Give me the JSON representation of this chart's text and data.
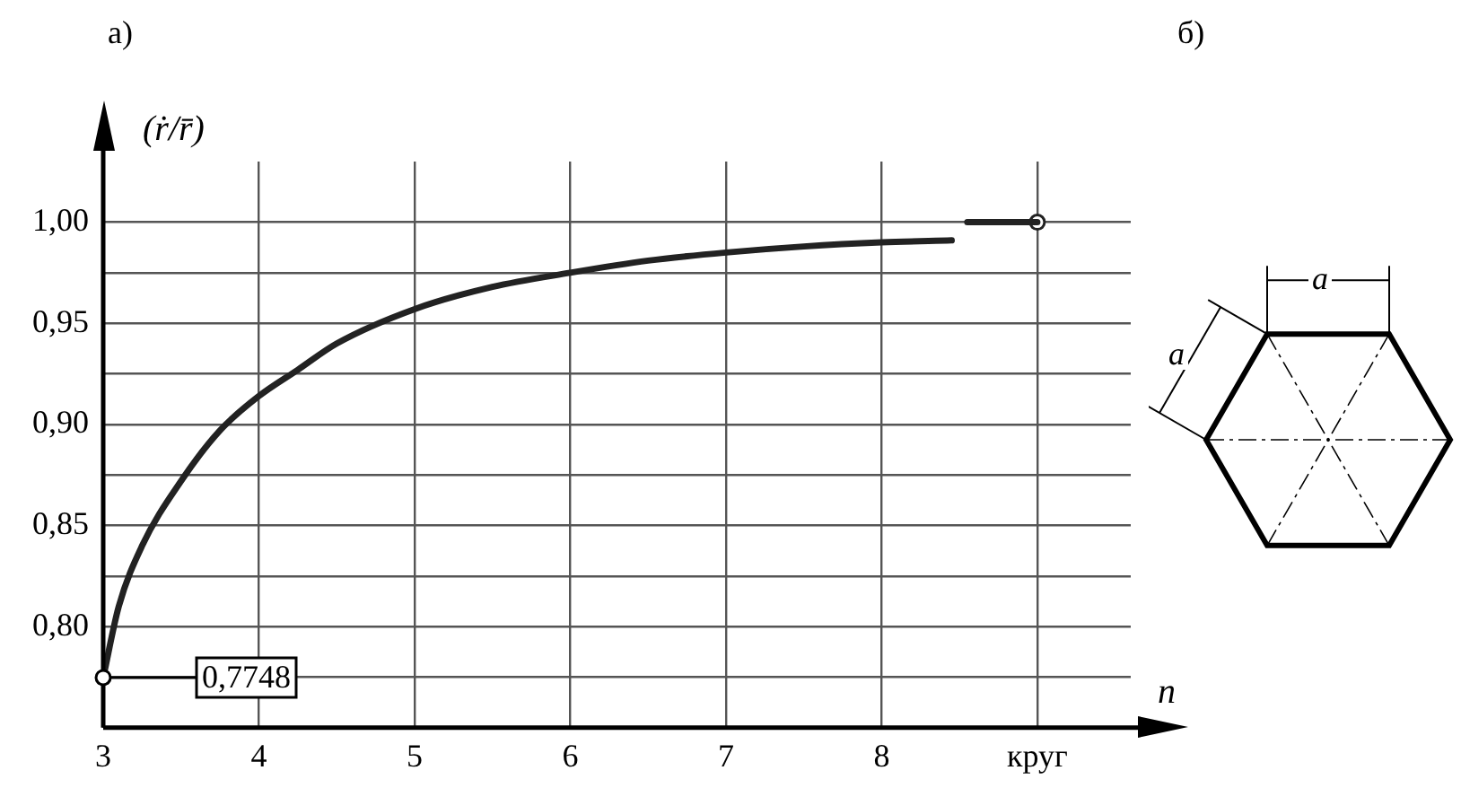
{
  "chart_data": {
    "type": "line",
    "xlabel": "n",
    "ylabel": "(ṙ/r̄)",
    "xlim": [
      3,
      9.6
    ],
    "ylim": [
      0.75,
      1.03
    ],
    "xticks": [
      3,
      4,
      5,
      6,
      7,
      8,
      {
        "value": 9,
        "label": "круг"
      }
    ],
    "yticks": [
      {
        "value": 0.775,
        "label": null
      },
      {
        "value": 0.8,
        "label": "0,80"
      },
      {
        "value": 0.825,
        "label": null
      },
      {
        "value": 0.85,
        "label": "0,85"
      },
      {
        "value": 0.875,
        "label": null
      },
      {
        "value": 0.9,
        "label": "0,90"
      },
      {
        "value": 0.925,
        "label": null
      },
      {
        "value": 0.95,
        "label": "0,95"
      },
      {
        "value": 0.975,
        "label": null
      },
      {
        "value": 1.0,
        "label": "1,00"
      }
    ],
    "grid": true,
    "legend": false,
    "series": [
      {
        "type": "line",
        "color": "#222222",
        "marker": "none",
        "x": [
          3,
          3.1,
          3.25,
          3.5,
          3.75,
          4,
          4.25,
          4.5,
          5,
          5.5,
          6,
          6.5,
          7,
          7.5,
          8,
          8.45,
          null,
          8.55,
          9
        ],
        "values": [
          0.7748,
          0.81,
          0.84,
          0.872,
          0.897,
          0.914,
          0.927,
          0.94,
          0.957,
          0.968,
          0.975,
          0.981,
          0.985,
          0.988,
          0.99,
          0.991,
          null,
          1.0,
          1.0
        ]
      },
      {
        "type": "scatter",
        "color": "#222222",
        "marker": "circle",
        "x": [
          9
        ],
        "values": [
          1.0
        ]
      }
    ],
    "annotations": [
      {
        "text": "0,7748",
        "x": 3,
        "y": 0.7748
      },
      "а)",
      "б)",
      "a",
      "a"
    ]
  }
}
